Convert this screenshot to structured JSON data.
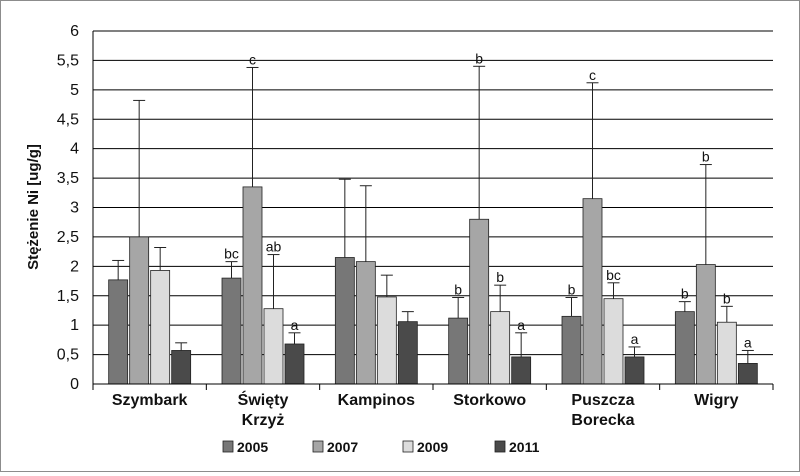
{
  "chart_data": {
    "type": "bar",
    "title": "",
    "xlabel": "",
    "ylabel": "Stężenie Ni [ug/g]",
    "ylim": [
      0,
      6
    ],
    "yticks": [
      "0",
      "0,5",
      "1",
      "1,5",
      "2",
      "2,5",
      "3",
      "3,5",
      "4",
      "4,5",
      "5",
      "5,5",
      "6"
    ],
    "grid": true,
    "legend_position": "bottom",
    "categories": [
      {
        "lines": [
          "Szymbark"
        ]
      },
      {
        "lines": [
          "Święty",
          "Krzyż"
        ]
      },
      {
        "lines": [
          "Kampinos"
        ]
      },
      {
        "lines": [
          "Storkowo"
        ]
      },
      {
        "lines": [
          "Puszcza",
          "Borecka"
        ]
      },
      {
        "lines": [
          "Wigry"
        ]
      }
    ],
    "series": [
      {
        "name": "2005",
        "color": "#777777",
        "values": [
          1.77,
          1.8,
          2.15,
          1.12,
          1.15,
          1.23
        ],
        "errors": [
          2.1,
          2.08,
          3.48,
          1.47,
          1.47,
          1.4
        ],
        "letters": [
          "",
          "bc",
          "",
          "b",
          "b",
          "b"
        ]
      },
      {
        "name": "2007",
        "color": "#a6a6a6",
        "values": [
          2.5,
          3.35,
          2.08,
          2.8,
          3.15,
          2.03
        ],
        "errors": [
          4.82,
          5.38,
          3.37,
          5.4,
          5.12,
          3.73
        ],
        "letters": [
          "",
          "c",
          "",
          "b",
          "c",
          "b"
        ]
      },
      {
        "name": "2009",
        "color": "#dcdcdc",
        "values": [
          1.93,
          1.28,
          1.48,
          1.23,
          1.45,
          1.05
        ],
        "errors": [
          2.32,
          2.2,
          1.85,
          1.68,
          1.72,
          1.32
        ],
        "letters": [
          "",
          "ab",
          "",
          "b",
          "bc",
          "b"
        ]
      },
      {
        "name": "2011",
        "color": "#4a4a4a",
        "values": [
          0.57,
          0.68,
          1.06,
          0.46,
          0.46,
          0.35
        ],
        "errors": [
          0.7,
          0.87,
          1.23,
          0.87,
          0.63,
          0.57
        ],
        "letters": [
          "",
          "a",
          "",
          "a",
          "a",
          "a"
        ]
      }
    ]
  }
}
